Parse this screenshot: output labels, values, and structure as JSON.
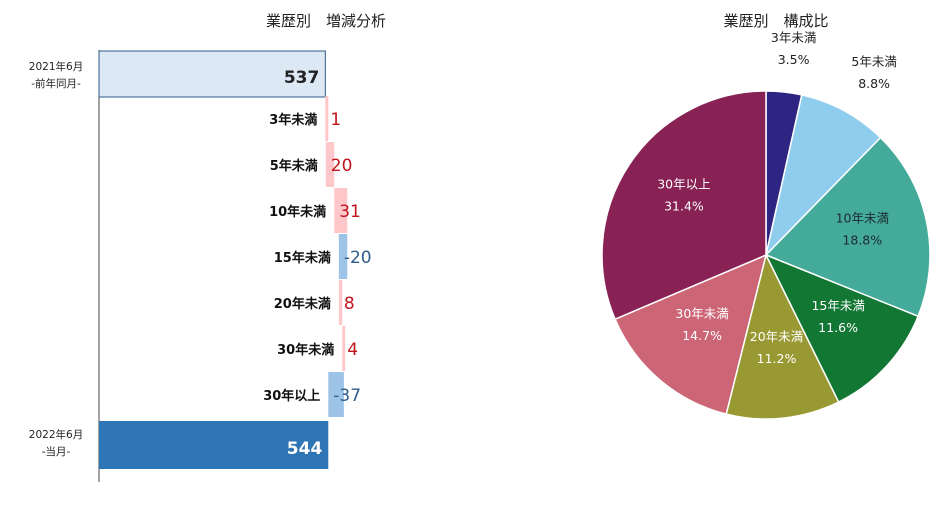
{
  "chart_data": [
    {
      "type": "bar",
      "subtype": "waterfall",
      "title": "業歴別　増減分析",
      "start": {
        "label": "2021年6月",
        "sublabel": "-前年同月-",
        "value": 537
      },
      "steps": [
        {
          "label": "3年未満",
          "value": 1
        },
        {
          "label": "5年未満",
          "value": 20
        },
        {
          "label": "10年未満",
          "value": 31
        },
        {
          "label": "15年未満",
          "value": -20
        },
        {
          "label": "20年未満",
          "value": 8
        },
        {
          "label": "30年未満",
          "value": 4
        },
        {
          "label": "30年以上",
          "value": -37
        }
      ],
      "end": {
        "label": "2022年6月",
        "sublabel": "-当月-",
        "value": 544
      },
      "colors": {
        "start": "#dde8f5",
        "start_border": "#2e5c8a",
        "increase": "#ffc7c9",
        "increase_text": "#c0141c",
        "decrease": "#9dc3e6",
        "decrease_text": "#2e5c8a",
        "end": "#2e75b6",
        "end_text": "#ffffff"
      }
    },
    {
      "type": "pie",
      "title": "業歴別　構成比",
      "slices": [
        {
          "label": "3年未満",
          "value": 3.5,
          "display": "3.5%",
          "color": "#2e2583"
        },
        {
          "label": "5年未満",
          "value": 8.8,
          "display": "8.8%",
          "color": "#8fcdee"
        },
        {
          "label": "10年未満",
          "value": 18.8,
          "display": "18.8%",
          "color": "#44aa99"
        },
        {
          "label": "15年未満",
          "value": 11.6,
          "display": "11.6%",
          "color": "#117733"
        },
        {
          "label": "20年未満",
          "value": 11.2,
          "display": "11.2%",
          "color": "#999933"
        },
        {
          "label": "30年未満",
          "value": 14.7,
          "display": "14.7%",
          "color": "#cc6677"
        },
        {
          "label": "30年以上",
          "value": 31.4,
          "display": "31.4%",
          "color": "#882255"
        }
      ]
    }
  ]
}
